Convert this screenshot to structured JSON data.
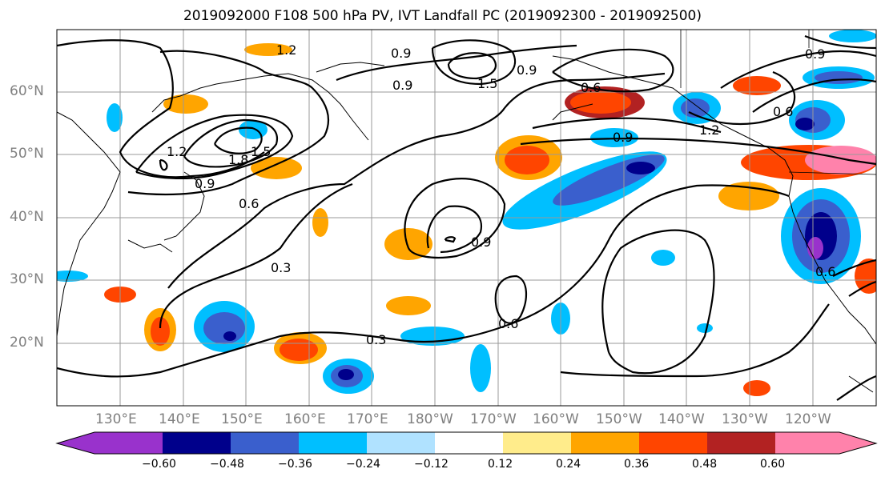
{
  "title": "2019092000 F108 500 hPa PV, IVT Landfall PC (2019092300 - 2019092500)",
  "lat_labels": [
    "60°N",
    "50°N",
    "40°N",
    "30°N",
    "20°N"
  ],
  "lon_labels": [
    "130°E",
    "140°E",
    "150°E",
    "160°E",
    "170°E",
    "180°W",
    "170°W",
    "160°W",
    "150°W",
    "140°W",
    "130°W",
    "120°W"
  ],
  "colorbar": {
    "ticks": [
      "−0.60",
      "−0.48",
      "−0.36",
      "−0.24",
      "−0.12",
      "0.12",
      "0.24",
      "0.36",
      "0.48",
      "0.60"
    ],
    "colors": [
      "#9932cc",
      "#00008b",
      "#3a5fcd",
      "#00bfff",
      "#b0e2ff",
      "#ffffff",
      "#ffec8b",
      "#ffa500",
      "#ff4500",
      "#b22222",
      "#ff82ab"
    ]
  },
  "contour_labels": [
    "1.2",
    "0.9",
    "0.9",
    "1.5",
    "0.9",
    "0.6",
    "0.6",
    "1.2",
    "0.9",
    "0.9",
    "1.2",
    "1.8",
    "1.5",
    "0.9",
    "0.6",
    "0.3",
    "0.9",
    "0.6",
    "0.3",
    "0.6"
  ]
}
